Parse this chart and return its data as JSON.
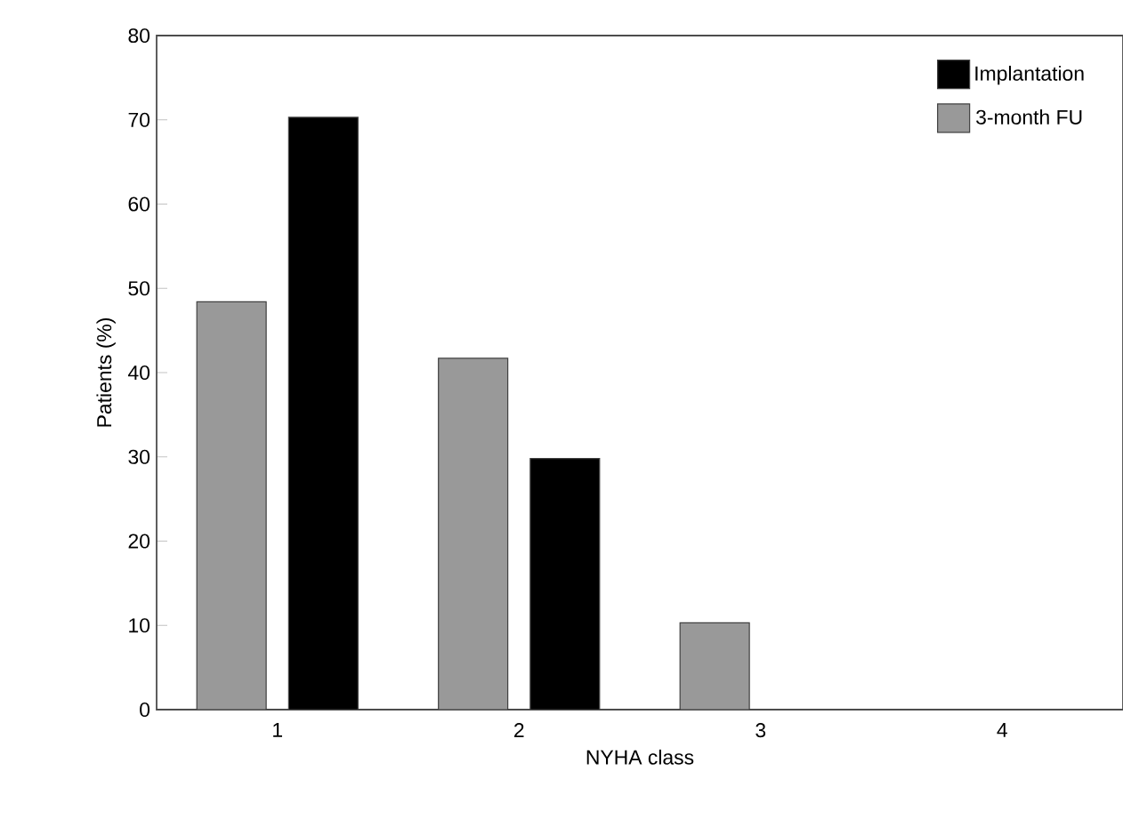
{
  "chart_data": {
    "type": "bar",
    "xlabel": "NYHA class",
    "ylabel": "Patients (%)",
    "categories": [
      "1",
      "2",
      "3",
      "4"
    ],
    "series": [
      {
        "name": "3-month FU",
        "color": "#999999",
        "values": [
          48.4,
          41.7,
          10.3,
          null
        ]
      },
      {
        "name": "Implantation",
        "color": "#000000",
        "values": [
          70.3,
          29.8,
          null,
          null
        ]
      }
    ],
    "ylim": [
      0,
      80
    ],
    "yticks": [
      0,
      10,
      20,
      30,
      40,
      50,
      60,
      70,
      80
    ],
    "grid": false,
    "legend": "top right"
  }
}
